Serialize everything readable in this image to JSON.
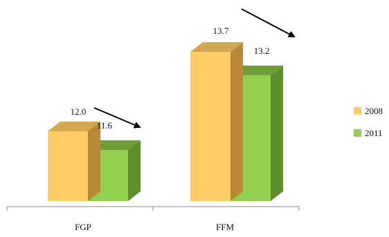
{
  "chart_data": {
    "type": "bar",
    "categories": [
      "FGP",
      "FFM"
    ],
    "series": [
      {
        "name": "2008",
        "values": [
          12.0,
          13.7
        ],
        "labels": [
          "12.0",
          "13.7"
        ],
        "color": "#FFCC66"
      },
      {
        "name": "2011",
        "values": [
          11.6,
          13.2
        ],
        "labels": [
          "11.6",
          "13.2"
        ],
        "color": "#92D050"
      }
    ],
    "title": "",
    "xlabel": "",
    "ylabel": "",
    "legend_position": "right",
    "grid": false,
    "bar_style": "3d",
    "annotations": [
      "decreasing trend arrows"
    ]
  },
  "colors": {
    "series_2008_side": "#B8893A",
    "series_2008_top": "#D4A852",
    "series_2011_side": "#5E8F2A",
    "series_2011_top": "#6E9E35",
    "axis": "#888888",
    "arrow": "#000000"
  }
}
